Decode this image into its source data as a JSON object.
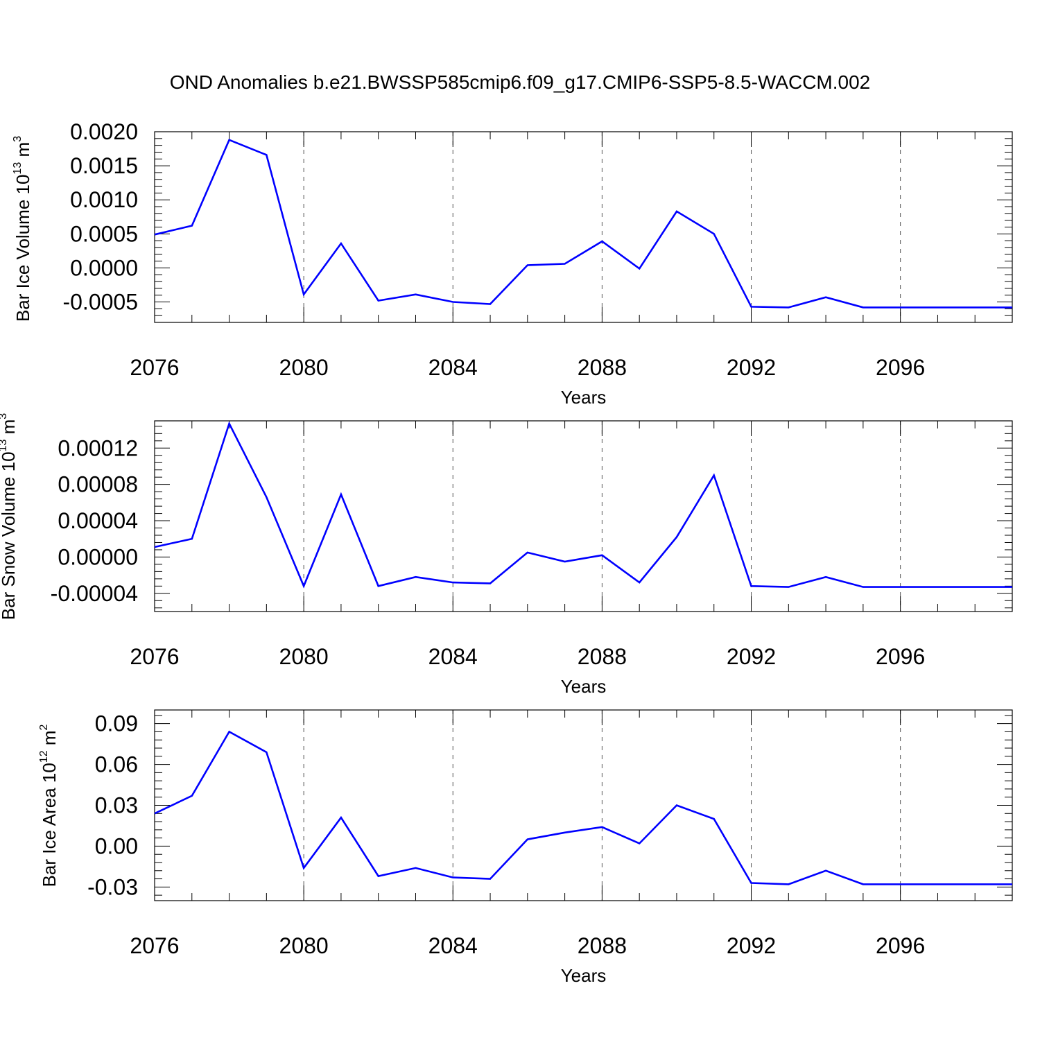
{
  "figure": {
    "title": "OND Anomalies b.e21.BWSSP585cmip6.f09_g17.CMIP6-SSP5-8.5-WACCM.002",
    "line_color": "#0000ff"
  },
  "chart_data": [
    {
      "type": "line",
      "title": "",
      "xlabel": "Years",
      "ylabel_main": "Bar Ice Volume 10",
      "ylabel_exp": "13",
      "ylabel_unit": " m",
      "ylabel_unit_exp": "3",
      "xlim": [
        2076,
        2099
      ],
      "ylim": [
        -0.0008,
        0.002
      ],
      "xticks": [
        2076,
        2080,
        2084,
        2088,
        2092,
        2096
      ],
      "xtick_labels": [
        "2076",
        "2080",
        "2084",
        "2088",
        "2092",
        "2096"
      ],
      "yticks": [
        -0.0005,
        0,
        0.0005,
        0.001,
        0.0015,
        0.002
      ],
      "ytick_labels": [
        "-0.0005",
        "0.0000",
        "0.0005",
        "0.0010",
        "0.0015",
        "0.0020"
      ],
      "grid": "vertical dashed at major x ticks",
      "series": [
        {
          "x": [
            2076,
            2077,
            2078,
            2079,
            2080,
            2081,
            2082,
            2083,
            2084,
            2085,
            2086,
            2087,
            2088,
            2089,
            2090,
            2091,
            2092,
            2093,
            2094,
            2095,
            2096,
            2097,
            2098,
            2099
          ],
          "values": [
            0.00049,
            0.00062,
            0.00188,
            0.00166,
            -0.00039,
            0.00036,
            -0.00048,
            -0.00039,
            -0.0005,
            -0.00053,
            4e-05,
            6e-05,
            0.00039,
            -1e-05,
            0.00083,
            0.0005,
            -0.00057,
            -0.00058,
            -0.00043,
            -0.00058,
            -0.00058,
            -0.00058,
            -0.00058,
            -0.00058
          ]
        }
      ]
    },
    {
      "type": "line",
      "title": "",
      "xlabel": "Years",
      "ylabel_main": "Bar Snow Volume 10",
      "ylabel_exp": "13",
      "ylabel_unit": " m",
      "ylabel_unit_exp": "3",
      "xlim": [
        2076,
        2099
      ],
      "ylim": [
        -6e-05,
        0.00015
      ],
      "xticks": [
        2076,
        2080,
        2084,
        2088,
        2092,
        2096
      ],
      "xtick_labels": [
        "2076",
        "2080",
        "2084",
        "2088",
        "2092",
        "2096"
      ],
      "yticks": [
        -4e-05,
        0,
        4e-05,
        8e-05,
        0.00012
      ],
      "ytick_labels": [
        "-0.00004",
        "0.00000",
        "0.00004",
        "0.00008",
        "0.00012"
      ],
      "grid": "vertical dashed at major x ticks",
      "series": [
        {
          "x": [
            2076,
            2077,
            2078,
            2079,
            2080,
            2081,
            2082,
            2083,
            2084,
            2085,
            2086,
            2087,
            2088,
            2089,
            2090,
            2091,
            2092,
            2093,
            2094,
            2095,
            2096,
            2097,
            2098,
            2099
          ],
          "values": [
            1.1e-05,
            2e-05,
            0.000147,
            6.6e-05,
            -3.2e-05,
            6.9e-05,
            -3.2e-05,
            -2.2e-05,
            -2.8e-05,
            -2.9e-05,
            5e-06,
            -5e-06,
            2e-06,
            -2.8e-05,
            2.2e-05,
            9e-05,
            -3.2e-05,
            -3.3e-05,
            -2.2e-05,
            -3.3e-05,
            -3.3e-05,
            -3.3e-05,
            -3.3e-05,
            -3.3e-05
          ]
        }
      ]
    },
    {
      "type": "line",
      "title": "",
      "xlabel": "Years",
      "ylabel_main": "Bar Ice Area 10",
      "ylabel_exp": "12",
      "ylabel_unit": " m",
      "ylabel_unit_exp": "2",
      "xlim": [
        2076,
        2099
      ],
      "ylim": [
        -0.04,
        0.1
      ],
      "xticks": [
        2076,
        2080,
        2084,
        2088,
        2092,
        2096
      ],
      "xtick_labels": [
        "2076",
        "2080",
        "2084",
        "2088",
        "2092",
        "2096"
      ],
      "yticks": [
        -0.03,
        0,
        0.03,
        0.06,
        0.09
      ],
      "ytick_labels": [
        "-0.03",
        "0.00",
        "0.03",
        "0.06",
        "0.09"
      ],
      "grid": "vertical dashed at major x ticks",
      "series": [
        {
          "x": [
            2076,
            2077,
            2078,
            2079,
            2080,
            2081,
            2082,
            2083,
            2084,
            2085,
            2086,
            2087,
            2088,
            2089,
            2090,
            2091,
            2092,
            2093,
            2094,
            2095,
            2096,
            2097,
            2098,
            2099
          ],
          "values": [
            0.024,
            0.037,
            0.084,
            0.069,
            -0.016,
            0.021,
            -0.022,
            -0.016,
            -0.023,
            -0.024,
            0.005,
            0.01,
            0.014,
            0.002,
            0.03,
            0.02,
            -0.027,
            -0.028,
            -0.018,
            -0.028,
            -0.028,
            -0.028,
            -0.028,
            -0.028
          ]
        }
      ]
    }
  ]
}
